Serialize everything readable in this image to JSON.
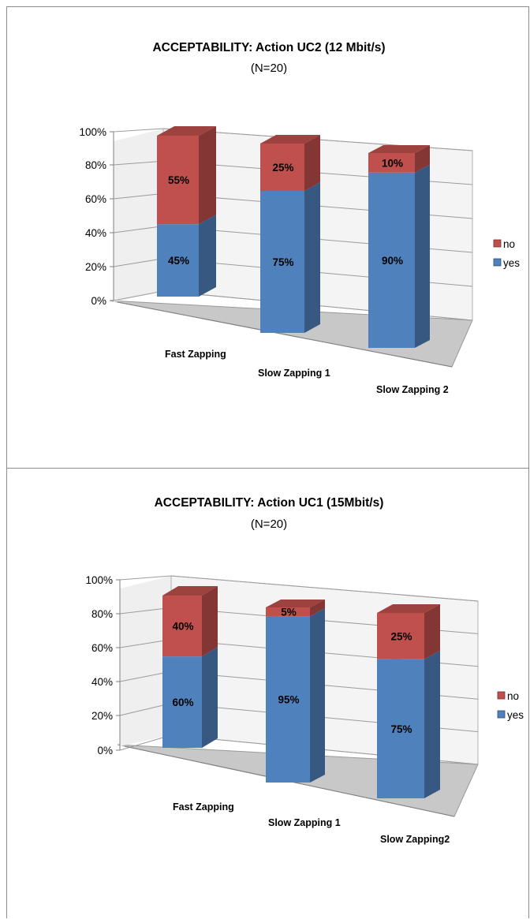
{
  "chart_data": [
    {
      "type": "bar",
      "stacked": true,
      "view": "3d",
      "title": "ACCEPTABILITY: Action UC2 (12 Mbit/s)",
      "subtitle": "(N=20)",
      "categories": [
        "Fast Zapping",
        "Slow Zapping 1",
        "Slow Zapping  2"
      ],
      "series": [
        {
          "name": "yes",
          "values": [
            45,
            75,
            90
          ],
          "labels": [
            "45%",
            "75%",
            "90%"
          ],
          "color": "#4f81bd"
        },
        {
          "name": "no",
          "values": [
            55,
            25,
            10
          ],
          "labels": [
            "55%",
            "25%",
            "10%"
          ],
          "color": "#c0504d"
        }
      ],
      "ylim": [
        0,
        100
      ],
      "yticks": [
        "0%",
        "20%",
        "40%",
        "60%",
        "80%",
        "100%"
      ],
      "grid": true,
      "legend": "right",
      "legend_items": [
        "no",
        "yes"
      ]
    },
    {
      "type": "bar",
      "stacked": true,
      "view": "3d",
      "title": "ACCEPTABILITY: Action UC1 (15Mbit/s)",
      "subtitle": "(N=20)",
      "categories": [
        "Fast Zapping",
        "Slow Zapping 1",
        "Slow Zapping2"
      ],
      "series": [
        {
          "name": "yes",
          "values": [
            60,
            95,
            75
          ],
          "labels": [
            "60%",
            "95%",
            "75%"
          ],
          "color": "#4f81bd"
        },
        {
          "name": "no",
          "values": [
            40,
            5,
            25
          ],
          "labels": [
            "40%",
            "5%",
            "25%"
          ],
          "color": "#c0504d"
        }
      ],
      "ylim": [
        0,
        100
      ],
      "yticks": [
        "0%",
        "20%",
        "40%",
        "60%",
        "80%",
        "100%"
      ],
      "grid": true,
      "legend": "right",
      "legend_items": [
        "no",
        "yes"
      ]
    }
  ]
}
